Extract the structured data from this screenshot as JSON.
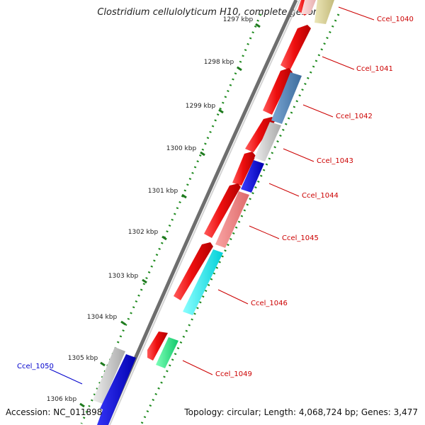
{
  "title": "Clostridium cellulolyticum H10, complete genome",
  "footer": {
    "accession": "Accession: NC_011898",
    "topology": "Topology: circular; Length: 4,068,724 bp; Genes: 3,477"
  },
  "scale": {
    "ticks": [
      {
        "label": "1297 kbp",
        "value": 1297
      },
      {
        "label": "1298 kbp",
        "value": 1298
      },
      {
        "label": "1299 kbp",
        "value": 1299
      },
      {
        "label": "1300 kbp",
        "value": 1300
      },
      {
        "label": "1301 kbp",
        "value": 1301
      },
      {
        "label": "1302 kbp",
        "value": 1302
      },
      {
        "label": "1303 kbp",
        "value": 1303
      },
      {
        "label": "1304 kbp",
        "value": 1304
      },
      {
        "label": "1305 kbp",
        "value": 1305
      },
      {
        "label": "1306 kbp",
        "value": 1306
      }
    ]
  },
  "gene_labels": [
    {
      "name": "Ccel_1040",
      "color": "#cc0000"
    },
    {
      "name": "Ccel_1041",
      "color": "#cc0000"
    },
    {
      "name": "Ccel_1042",
      "color": "#cc0000"
    },
    {
      "name": "Ccel_1043",
      "color": "#cc0000"
    },
    {
      "name": "Ccel_1044",
      "color": "#cc0000"
    },
    {
      "name": "Ccel_1045",
      "color": "#cc0000"
    },
    {
      "name": "Ccel_1046",
      "color": "#cc0000"
    },
    {
      "name": "Ccel_1049",
      "color": "#cc0000"
    },
    {
      "name": "Ccel_1050",
      "color": "#0000cc"
    }
  ],
  "colors": {
    "backbone": "#8a8a8a",
    "tick": "#1e7a1e",
    "forward_cds": "#ee1111",
    "feature_blue": "#4a7fb5",
    "feature_gray": "#c8c8c8",
    "feature_darkblue": "#0000ee",
    "feature_pink": "#f08080",
    "feature_cyan": "#00ffff",
    "feature_green": "#22ee88",
    "feature_khaki": "#d9d29a",
    "feature_lightpink": "#f4c8c8"
  }
}
